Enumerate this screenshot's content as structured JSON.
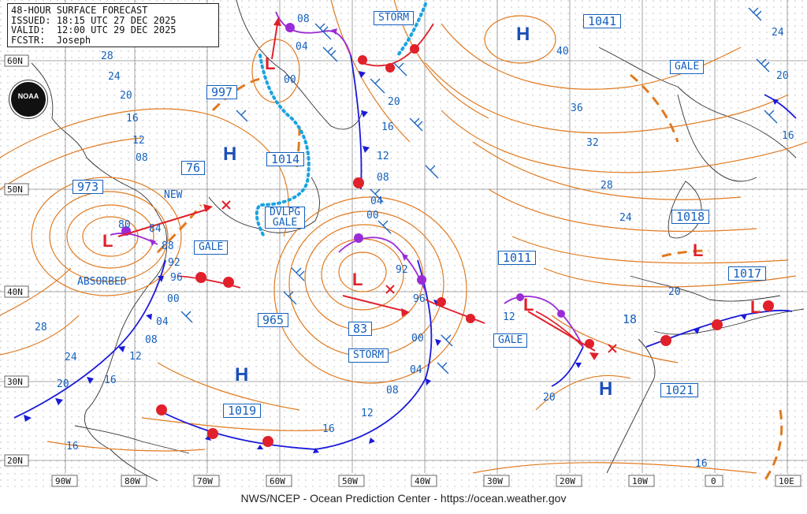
{
  "header": {
    "line1": "48-HOUR SURFACE FORECAST",
    "line2": "ISSUED: 18:15 UTC 27 DEC 2025",
    "line3": "VALID:  12:00 UTC 29 DEC 2025",
    "line4": "FCSTR:  Joseph"
  },
  "logo": {
    "text": "NOAA",
    "icon": "noaa-logo"
  },
  "footer": "NWS/NCEP - Ocean Prediction Center - https://ocean.weather.gov",
  "lat_labels": [
    "60N",
    "50N",
    "40N",
    "30N",
    "20N"
  ],
  "lon_labels": [
    "90W",
    "80W",
    "70W",
    "60W",
    "50W",
    "40W",
    "30W",
    "20W",
    "10W",
    "0",
    "10E"
  ],
  "pressure_boxes": {
    "p997": "997",
    "p1014": "1014",
    "p973": "973",
    "p965": "965",
    "p1019": "1019",
    "p1041": "1041",
    "p1018": "1018",
    "p1011": "1011",
    "p1017": "1017",
    "p1021": "1021",
    "p83": "83",
    "p76": "76"
  },
  "warnings": {
    "storm_n": "STORM",
    "storm_s": "STORM",
    "gale_e": "GALE",
    "gale_w": "GALE",
    "gale_mid": "GALE",
    "dvlpg": "DVLPG",
    "dvlpg2": "GALE"
  },
  "notes": {
    "new": "NEW",
    "absorbed": "ABSORBED"
  },
  "plain_values": {
    "v18": "18"
  },
  "high_symbol": "H",
  "low_symbol": "L",
  "colors": {
    "isobar": "#e07a1f",
    "cold_front": "#1a1adb",
    "warm_front": "#e0202a",
    "occluded": "#9a2bd6",
    "trough": "#1aa3e0",
    "label": "#1560bd",
    "grid": "#9a9a9a"
  },
  "contour_labels": [
    "28",
    "24",
    "20",
    "16",
    "12",
    "08",
    "04",
    "00",
    "96",
    "92",
    "88",
    "84",
    "80",
    "36",
    "32",
    "40",
    "1041",
    "12",
    "20",
    "16",
    "08",
    "04",
    "00",
    "96"
  ]
}
